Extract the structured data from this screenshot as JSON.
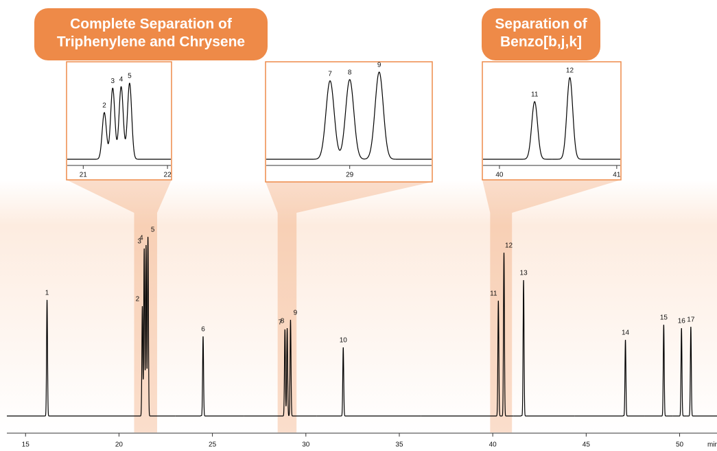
{
  "chart_data": {
    "type": "line",
    "x": [
      16.15,
      21.25,
      21.35,
      21.45,
      21.55,
      24.5,
      28.88,
      29.0,
      29.18,
      32.0,
      40.3,
      40.6,
      41.65,
      47.1,
      49.15,
      50.1,
      50.6
    ],
    "values": [
      169,
      160,
      244,
      249,
      261,
      116,
      126,
      128,
      140,
      100,
      168,
      238,
      198,
      111,
      133,
      128,
      130
    ],
    "point_labels": [
      "1",
      "2",
      "3",
      "4",
      "5",
      "6",
      "7",
      "8",
      "9",
      "10",
      "11",
      "12",
      "13",
      "14",
      "15",
      "16",
      "17"
    ],
    "xlim": [
      14,
      52
    ],
    "xticks": [
      15,
      20,
      25,
      30,
      35,
      40,
      45,
      50
    ],
    "xlabel": "min",
    "ylim": [
      0,
      270
    ],
    "color": "#000000",
    "accent_color": "#ee8a48",
    "insets": [
      {
        "title": [
          "Complete Separation of",
          "Triphenylene and Chrysene"
        ],
        "xlim": [
          20.81,
          22.04
        ],
        "xticks": [
          21,
          22
        ],
        "ylim": [
          0,
          322
        ]
      },
      {
        "xlim": [
          28.49,
          29.5
        ],
        "xticks": [
          29
        ],
        "ylim": [
          0,
          151
        ]
      },
      {
        "title": [
          "Separation of",
          "Benzo[b,j,k]"
        ],
        "xlim": [
          39.86,
          41.03
        ],
        "xticks": [
          40,
          41
        ],
        "ylim": [
          0,
          274
        ]
      }
    ]
  }
}
